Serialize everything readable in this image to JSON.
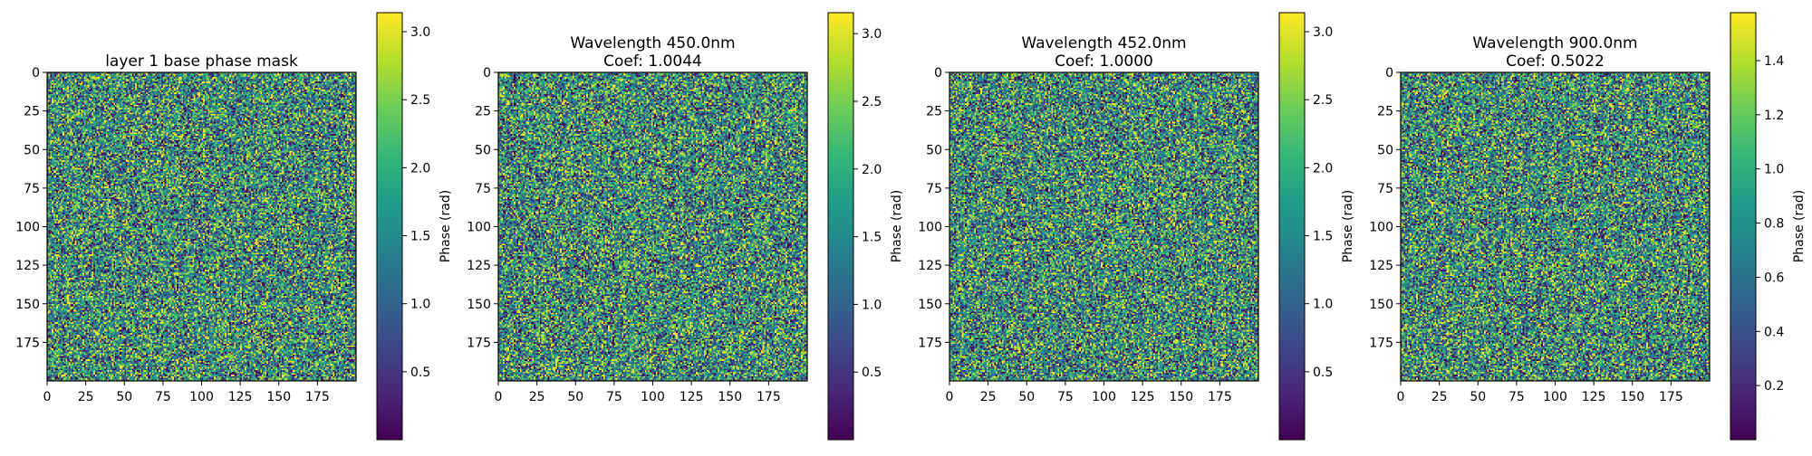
{
  "chart_data": [
    {
      "type": "heatmap",
      "title_lines": [
        "layer 1 base phase mask"
      ],
      "xlabel": "",
      "ylabel": "",
      "xlim": [
        0,
        200
      ],
      "ylim": [
        200,
        0
      ],
      "x_ticks": [
        0,
        25,
        50,
        75,
        100,
        125,
        150,
        175
      ],
      "y_ticks": [
        0,
        25,
        50,
        75,
        100,
        125,
        150,
        175
      ],
      "grid_size": [
        200,
        200
      ],
      "colormap": "viridis",
      "value_range": [
        0.0,
        3.14
      ],
      "colorbar": {
        "label": "Phase (rad)",
        "ticks": [
          0.5,
          1.0,
          1.5,
          2.0,
          2.5,
          3.0
        ],
        "tick_labels": [
          "0.5",
          "1.0",
          "1.5",
          "2.0",
          "2.5",
          "3.0"
        ]
      },
      "grid": false
    },
    {
      "type": "heatmap",
      "title_lines": [
        "Wavelength 450.0nm",
        "Coef: 1.0044"
      ],
      "xlabel": "",
      "ylabel": "",
      "xlim": [
        0,
        200
      ],
      "ylim": [
        200,
        0
      ],
      "x_ticks": [
        0,
        25,
        50,
        75,
        100,
        125,
        150,
        175
      ],
      "y_ticks": [
        0,
        25,
        50,
        75,
        100,
        125,
        150,
        175
      ],
      "grid_size": [
        200,
        200
      ],
      "colormap": "viridis",
      "value_range": [
        0.0,
        3.155
      ],
      "colorbar": {
        "label": "Phase (rad)",
        "ticks": [
          0.5,
          1.0,
          1.5,
          2.0,
          2.5,
          3.0
        ],
        "tick_labels": [
          "0.5",
          "1.0",
          "1.5",
          "2.0",
          "2.5",
          "3.0"
        ]
      },
      "grid": false
    },
    {
      "type": "heatmap",
      "title_lines": [
        "Wavelength 452.0nm",
        "Coef: 1.0000"
      ],
      "xlabel": "",
      "ylabel": "",
      "xlim": [
        0,
        200
      ],
      "ylim": [
        200,
        0
      ],
      "x_ticks": [
        0,
        25,
        50,
        75,
        100,
        125,
        150,
        175
      ],
      "y_ticks": [
        0,
        25,
        50,
        75,
        100,
        125,
        150,
        175
      ],
      "grid_size": [
        200,
        200
      ],
      "colormap": "viridis",
      "value_range": [
        0.0,
        3.14
      ],
      "colorbar": {
        "label": "Phase (rad)",
        "ticks": [
          0.5,
          1.0,
          1.5,
          2.0,
          2.5,
          3.0
        ],
        "tick_labels": [
          "0.5",
          "1.0",
          "1.5",
          "2.0",
          "2.5",
          "3.0"
        ]
      },
      "grid": false
    },
    {
      "type": "heatmap",
      "title_lines": [
        "Wavelength 900.0nm",
        "Coef: 0.5022"
      ],
      "xlabel": "",
      "ylabel": "",
      "xlim": [
        0,
        200
      ],
      "ylim": [
        200,
        0
      ],
      "x_ticks": [
        0,
        25,
        50,
        75,
        100,
        125,
        150,
        175
      ],
      "y_ticks": [
        0,
        25,
        50,
        75,
        100,
        125,
        150,
        175
      ],
      "grid_size": [
        200,
        200
      ],
      "colormap": "viridis",
      "value_range": [
        0.0,
        1.577
      ],
      "colorbar": {
        "label": "Phase (rad)",
        "ticks": [
          0.2,
          0.4,
          0.6,
          0.8,
          1.0,
          1.2,
          1.4
        ],
        "tick_labels": [
          "0.2",
          "0.4",
          "0.6",
          "0.8",
          "1.0",
          "1.2",
          "1.4"
        ]
      },
      "grid": false
    }
  ]
}
